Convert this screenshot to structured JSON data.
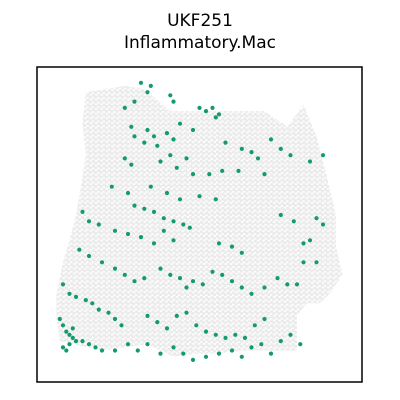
{
  "title": "UKF251",
  "subtitle": "Inflammatory.Mac",
  "colors": {
    "background_spots": "#ebebeb",
    "highlight": "#139a6f",
    "frame": "#000000"
  },
  "chart_data": {
    "type": "scatter",
    "title": "UKF251",
    "subtitle": "Inflammatory.Mac",
    "xlabel": "",
    "ylabel": "",
    "grid": false,
    "axes_ticks": false,
    "xlim": [
      0,
      100
    ],
    "ylim": [
      0,
      100
    ],
    "tissue_outline": [
      [
        15,
        92
      ],
      [
        27,
        94
      ],
      [
        33,
        93
      ],
      [
        41,
        86
      ],
      [
        46,
        86
      ],
      [
        70,
        86
      ],
      [
        77,
        81
      ],
      [
        82,
        88
      ],
      [
        86,
        78
      ],
      [
        89,
        66
      ],
      [
        92,
        53
      ],
      [
        92,
        43
      ],
      [
        94,
        34
      ],
      [
        90,
        28
      ],
      [
        87,
        25
      ],
      [
        83,
        25
      ],
      [
        80,
        21
      ],
      [
        80,
        10
      ],
      [
        63,
        10
      ],
      [
        56,
        9
      ],
      [
        49,
        9
      ],
      [
        42,
        8
      ],
      [
        34,
        12
      ],
      [
        20,
        10
      ],
      [
        7,
        13
      ],
      [
        6,
        20
      ],
      [
        6,
        28
      ],
      [
        8,
        38
      ],
      [
        10,
        45
      ],
      [
        12,
        53
      ],
      [
        14,
        65
      ],
      [
        15,
        72
      ],
      [
        14,
        82
      ]
    ],
    "series": [
      {
        "points": [
          [
            32,
            95
          ],
          [
            35,
            94
          ],
          [
            34,
            92
          ],
          [
            30,
            89
          ],
          [
            27,
            87
          ],
          [
            41,
            91
          ],
          [
            42,
            89
          ],
          [
            50,
            87
          ],
          [
            52,
            86
          ],
          [
            54,
            87
          ],
          [
            55,
            84
          ],
          [
            56,
            85
          ],
          [
            29,
            81
          ],
          [
            34,
            80
          ],
          [
            36,
            78
          ],
          [
            40,
            79
          ],
          [
            42,
            77
          ],
          [
            44,
            82
          ],
          [
            48,
            80
          ],
          [
            30,
            78
          ],
          [
            33,
            76
          ],
          [
            37,
            75
          ],
          [
            41,
            72
          ],
          [
            46,
            71
          ],
          [
            58,
            76
          ],
          [
            63,
            74
          ],
          [
            66,
            73
          ],
          [
            68,
            71
          ],
          [
            72,
            77
          ],
          [
            75,
            74
          ],
          [
            78,
            72
          ],
          [
            84,
            70
          ],
          [
            88,
            72
          ],
          [
            27,
            71
          ],
          [
            29,
            69
          ],
          [
            38,
            70
          ],
          [
            43,
            68
          ],
          [
            48,
            66
          ],
          [
            53,
            66
          ],
          [
            57,
            67
          ],
          [
            62,
            67
          ],
          [
            70,
            66
          ],
          [
            23,
            62
          ],
          [
            28,
            60
          ],
          [
            35,
            62
          ],
          [
            40,
            60
          ],
          [
            44,
            58
          ],
          [
            50,
            59
          ],
          [
            55,
            58
          ],
          [
            30,
            56
          ],
          [
            33,
            55
          ],
          [
            36,
            54
          ],
          [
            39,
            52
          ],
          [
            42,
            51
          ],
          [
            45,
            50
          ],
          [
            47,
            49
          ],
          [
            39,
            48
          ],
          [
            42,
            45
          ],
          [
            14,
            54
          ],
          [
            16,
            51
          ],
          [
            19,
            50
          ],
          [
            24,
            48
          ],
          [
            28,
            47
          ],
          [
            32,
            46
          ],
          [
            36,
            44
          ],
          [
            56,
            44
          ],
          [
            60,
            43
          ],
          [
            63,
            41
          ],
          [
            75,
            53
          ],
          [
            79,
            51
          ],
          [
            86,
            52
          ],
          [
            88,
            50
          ],
          [
            84,
            45
          ],
          [
            82,
            44
          ],
          [
            82,
            38
          ],
          [
            86,
            38
          ],
          [
            13,
            42
          ],
          [
            16,
            40
          ],
          [
            20,
            38
          ],
          [
            24,
            36
          ],
          [
            27,
            34
          ],
          [
            30,
            32
          ],
          [
            33,
            33
          ],
          [
            38,
            36
          ],
          [
            41,
            34
          ],
          [
            44,
            33
          ],
          [
            46,
            30
          ],
          [
            48,
            32
          ],
          [
            51,
            31
          ],
          [
            54,
            35
          ],
          [
            57,
            34
          ],
          [
            60,
            32
          ],
          [
            63,
            30
          ],
          [
            66,
            28
          ],
          [
            70,
            30
          ],
          [
            74,
            33
          ],
          [
            77,
            31
          ],
          [
            80,
            31
          ],
          [
            8,
            31
          ],
          [
            10,
            28
          ],
          [
            12,
            27
          ],
          [
            15,
            26
          ],
          [
            17,
            25
          ],
          [
            19,
            23
          ],
          [
            22,
            22
          ],
          [
            24,
            20
          ],
          [
            26,
            18
          ],
          [
            34,
            21
          ],
          [
            37,
            19
          ],
          [
            40,
            17
          ],
          [
            43,
            21
          ],
          [
            46,
            22
          ],
          [
            49,
            18
          ],
          [
            52,
            16
          ],
          [
            55,
            15
          ],
          [
            58,
            14
          ],
          [
            61,
            15
          ],
          [
            64,
            14
          ],
          [
            67,
            18
          ],
          [
            70,
            20
          ],
          [
            7,
            20
          ],
          [
            8,
            18
          ],
          [
            9,
            16
          ],
          [
            10,
            15
          ],
          [
            11,
            14
          ],
          [
            12,
            13
          ],
          [
            10,
            12
          ],
          [
            9,
            10
          ],
          [
            8,
            11
          ],
          [
            11,
            17
          ],
          [
            14,
            13
          ],
          [
            16,
            12
          ],
          [
            18,
            11
          ],
          [
            20,
            10
          ],
          [
            24,
            10
          ],
          [
            28,
            12
          ],
          [
            31,
            10
          ],
          [
            34,
            12
          ],
          [
            38,
            9
          ],
          [
            42,
            11
          ],
          [
            45,
            9
          ],
          [
            48,
            7
          ],
          [
            52,
            8
          ],
          [
            56,
            9
          ],
          [
            60,
            10
          ],
          [
            63,
            8
          ],
          [
            66,
            11
          ],
          [
            69,
            12
          ],
          [
            72,
            9
          ],
          [
            75,
            13
          ],
          [
            78,
            15
          ],
          [
            81,
            12
          ]
        ]
      }
    ]
  }
}
